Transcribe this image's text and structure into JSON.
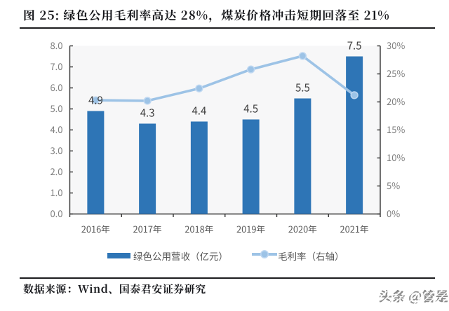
{
  "figure": {
    "title": "图 25: 绿色公用毛利率高达 28%，煤炭价格冲击短期回落至 21%"
  },
  "chart_data": {
    "type": "bar",
    "categories": [
      "2016年",
      "2017年",
      "2018年",
      "2019年",
      "2020年",
      "2021年"
    ],
    "series": [
      {
        "name": "绿色公用营收（亿元）",
        "type": "bar",
        "axis": "left",
        "values": [
          4.9,
          4.3,
          4.4,
          4.5,
          5.5,
          7.5
        ],
        "data_labels": [
          "4.9",
          "4.3",
          "4.4",
          "4.5",
          "5.5",
          "7.5"
        ],
        "color": "#2E75B6"
      },
      {
        "name": "毛利率（右轴）",
        "type": "line",
        "axis": "right",
        "values": [
          20.3,
          20.2,
          22.4,
          25.8,
          28.2,
          21.2
        ],
        "color": "#9DC3E6"
      }
    ],
    "left_axis": {
      "min": 0,
      "max": 8,
      "step": 1,
      "tick_labels": [
        "0.0",
        "1.0",
        "2.0",
        "3.0",
        "4.0",
        "5.0",
        "6.0",
        "7.0",
        "8.0"
      ]
    },
    "right_axis": {
      "min": 0,
      "max": 30,
      "step": 5,
      "tick_labels": [
        "0%",
        "5%",
        "10%",
        "15%",
        "20%",
        "25%",
        "30%"
      ]
    },
    "grid": false,
    "legend_position": "bottom",
    "title": "图 25: 绿色公用毛利率高达 28%，煤炭价格冲击短期回落至 21%"
  },
  "footer": {
    "source": "数据来源：Wind、国泰君安证券研究"
  },
  "watermark": {
    "text": "头条 @管是"
  },
  "colors": {
    "bar": "#2E75B6",
    "line": "#9DC3E6",
    "title_text": "#15161a",
    "rule": "#1c1c1e",
    "axis": "#333333",
    "tick_label": "#7f7f7f",
    "category_label": "#595959",
    "data_label": "#404040",
    "legend_text": "#595959",
    "plot_background": "#f7f7f8",
    "watermark": "#8e8e8e"
  }
}
